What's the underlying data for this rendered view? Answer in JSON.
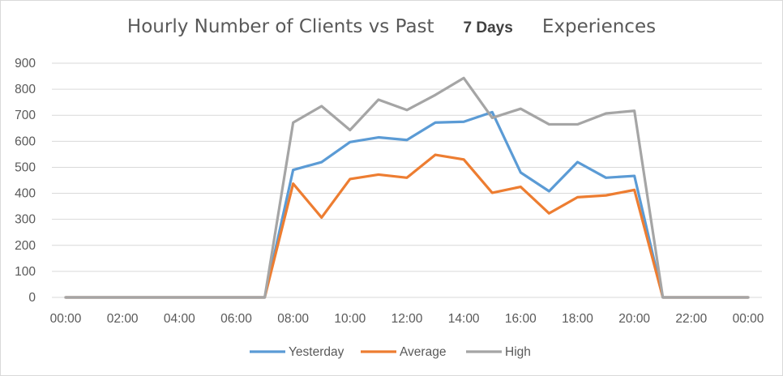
{
  "chart_data": {
    "type": "line",
    "title": "Hourly Number of Clients vs Past",
    "title_bold": "7 Days",
    "title_suffix": "Experiences",
    "xlabel": "",
    "ylabel": "",
    "ylim": [
      0,
      900
    ],
    "y_ticks": [
      0,
      100,
      200,
      300,
      400,
      500,
      600,
      700,
      800,
      900
    ],
    "x_tick_labels": [
      "00:00",
      "02:00",
      "04:00",
      "06:00",
      "08:00",
      "10:00",
      "12:00",
      "14:00",
      "16:00",
      "18:00",
      "20:00",
      "22:00",
      "00:00"
    ],
    "x": [
      0,
      1,
      2,
      3,
      4,
      5,
      6,
      7,
      8,
      9,
      10,
      11,
      12,
      13,
      14,
      15,
      16,
      17,
      18,
      19,
      20,
      21,
      22,
      23,
      24
    ],
    "grid": true,
    "legend_position": "bottom",
    "series": [
      {
        "name": "Yesterday",
        "color": "#5b9bd5",
        "values": [
          0,
          0,
          0,
          0,
          0,
          0,
          0,
          0,
          490,
          520,
          597,
          615,
          605,
          672,
          675,
          712,
          480,
          408,
          520,
          460,
          467,
          0,
          0,
          0,
          0
        ]
      },
      {
        "name": "Average",
        "color": "#ed7d31",
        "values": [
          0,
          0,
          0,
          0,
          0,
          0,
          0,
          0,
          437,
          307,
          455,
          472,
          460,
          548,
          530,
          402,
          425,
          323,
          385,
          392,
          413,
          0,
          0,
          0,
          0
        ]
      },
      {
        "name": "High",
        "color": "#a5a5a5",
        "values": [
          0,
          0,
          0,
          0,
          0,
          0,
          0,
          0,
          672,
          735,
          643,
          760,
          720,
          778,
          843,
          690,
          725,
          665,
          665,
          707,
          717,
          0,
          0,
          0,
          0
        ]
      }
    ]
  }
}
